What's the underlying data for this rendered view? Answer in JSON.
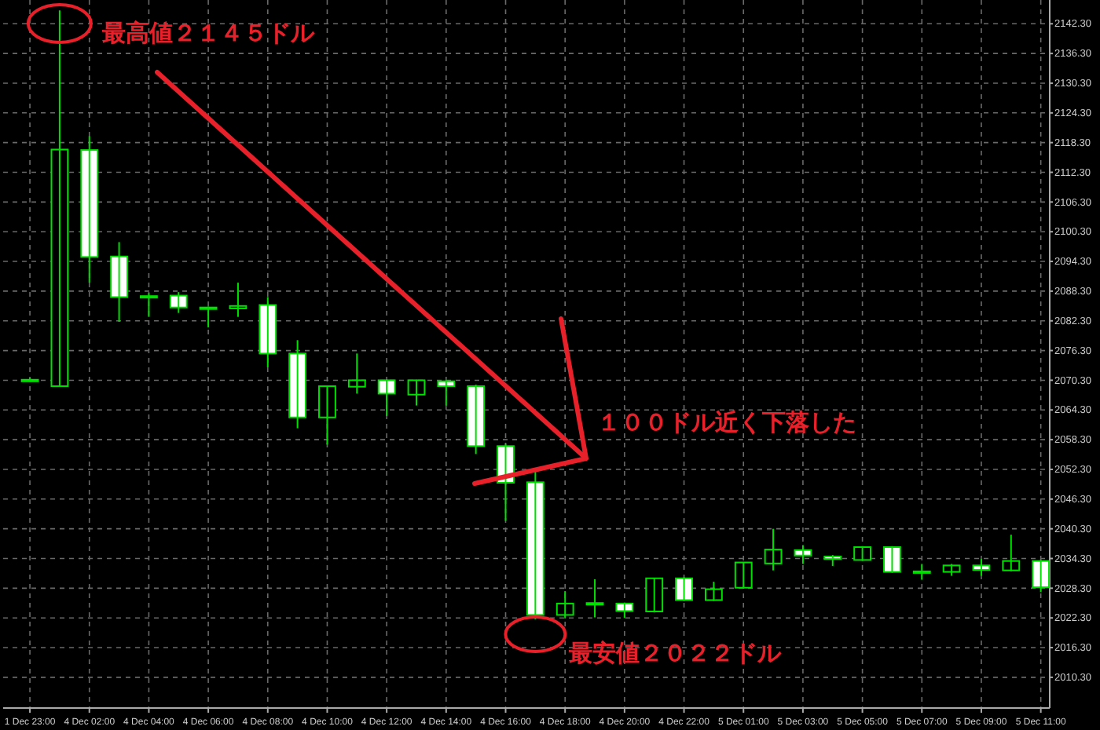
{
  "chart_data": {
    "type": "candlestick",
    "categories": [
      "1 Dec 23:00",
      null,
      "4 Dec 02:00",
      null,
      "4 Dec 04:00",
      null,
      "4 Dec 06:00",
      null,
      "4 Dec 08:00",
      null,
      "4 Dec 10:00",
      null,
      "4 Dec 12:00",
      null,
      "4 Dec 14:00",
      null,
      "4 Dec 16:00",
      null,
      "4 Dec 18:00",
      null,
      "4 Dec 20:00",
      null,
      "4 Dec 22:00",
      null,
      "5 Dec 01:00",
      null,
      "5 Dec 03:00",
      null,
      "5 Dec 05:00",
      null,
      "5 Dec 07:00",
      null,
      "5 Dec 09:00",
      null,
      "5 Dec 11:00"
    ],
    "ohlc": [
      [
        2070.4,
        2070.8,
        2070.0,
        2070.2
      ],
      [
        2069.1,
        2145,
        2069.1,
        2116.9
      ],
      [
        2116.8,
        2119.6,
        2090.0,
        2095.2
      ],
      [
        2095.3,
        2098.2,
        2082.1,
        2087.1
      ],
      [
        2087.1,
        2087.9,
        2083.1,
        2087.3
      ],
      [
        2087.4,
        2088.1,
        2083.9,
        2085.0
      ],
      [
        2085.0,
        2085.2,
        2081.0,
        2084.7
      ],
      [
        2084.8,
        2090.0,
        2083.1,
        2085.3
      ],
      [
        2085.5,
        2087.1,
        2072.9,
        2075.7
      ],
      [
        2075.7,
        2078.4,
        2060.6,
        2062.8
      ],
      [
        2062.8,
        2069.2,
        2057.3,
        2069.1
      ],
      [
        2069.0,
        2075.7,
        2067.6,
        2070.3
      ],
      [
        2070.3,
        2070.5,
        2063.1,
        2067.6
      ],
      [
        2067.4,
        2070.4,
        2065.2,
        2070.3
      ],
      [
        2070.1,
        2070.3,
        2065.2,
        2069.1
      ],
      [
        2069.1,
        2069.4,
        2055.4,
        2057.0
      ],
      [
        2057.0,
        2057.5,
        2041.9,
        2049.6
      ],
      [
        2049.7,
        2052.3,
        2022.0,
        2022.9
      ],
      [
        2022.9,
        2027.7,
        2022.2,
        2025.2
      ],
      [
        2025.2,
        2030.1,
        2022.4,
        2025.3
      ],
      [
        2025.2,
        2025.4,
        2022.3,
        2023.7
      ],
      [
        2023.6,
        2030.4,
        2023.4,
        2030.3
      ],
      [
        2030.3,
        2030.5,
        2025.7,
        2025.9
      ],
      [
        2025.9,
        2029.6,
        2025.7,
        2028.1
      ],
      [
        2028.4,
        2033.6,
        2028.2,
        2033.5
      ],
      [
        2033.3,
        2040.3,
        2031.9,
        2036.1
      ],
      [
        2036.0,
        2037.0,
        2033.2,
        2034.9
      ],
      [
        2034.7,
        2035.0,
        2032.8,
        2034.2
      ],
      [
        2034.0,
        2036.8,
        2033.8,
        2036.6
      ],
      [
        2036.6,
        2036.8,
        2031.4,
        2031.6
      ],
      [
        2031.6,
        2033.2,
        2030.0,
        2031.7
      ],
      [
        2031.6,
        2033.2,
        2030.8,
        2032.9
      ],
      [
        2032.9,
        2034.2,
        2030.8,
        2032.0
      ],
      [
        2031.9,
        2039.1,
        2031.7,
        2033.8
      ],
      [
        2033.8,
        2034.0,
        2027.5,
        2028.5
      ]
    ],
    "ylim": [
      2004.1,
      2147.1
    ],
    "yticks": [
      {
        "value": 2010.3,
        "label": "2010.30"
      },
      {
        "value": 2016.3,
        "label": "2016.30"
      },
      {
        "value": 2022.3,
        "label": "2022.30"
      },
      {
        "value": 2028.3,
        "label": "2028.30"
      },
      {
        "value": 2034.3,
        "label": "2034.30"
      },
      {
        "value": 2040.3,
        "label": "2040.30"
      },
      {
        "value": 2046.3,
        "label": "2046.30"
      },
      {
        "value": 2052.3,
        "label": "2052.30"
      },
      {
        "value": 2058.3,
        "label": "2058.30"
      },
      {
        "value": 2064.3,
        "label": "2064.30"
      },
      {
        "value": 2070.3,
        "label": "2070.30"
      },
      {
        "value": 2076.3,
        "label": "2076.30"
      },
      {
        "value": 2082.3,
        "label": "2082.30"
      },
      {
        "value": 2088.3,
        "label": "2088.30"
      },
      {
        "value": 2094.3,
        "label": "2094.30"
      },
      {
        "value": 2100.3,
        "label": "2100.30"
      },
      {
        "value": 2106.3,
        "label": "2106.30"
      },
      {
        "value": 2112.3,
        "label": "2112.30"
      },
      {
        "value": 2118.3,
        "label": "2118.30"
      },
      {
        "value": 2124.3,
        "label": "2124.30"
      },
      {
        "value": 2130.3,
        "label": "2130.30"
      },
      {
        "value": 2136.3,
        "label": "2136.30"
      },
      {
        "value": 2142.3,
        "label": "2142.30"
      }
    ],
    "grid": true,
    "color": "#00e000",
    "annotations": [
      "最高値２１４５ドル",
      "１００ドル近く下落した",
      "最安値２０２２ドル"
    ]
  }
}
